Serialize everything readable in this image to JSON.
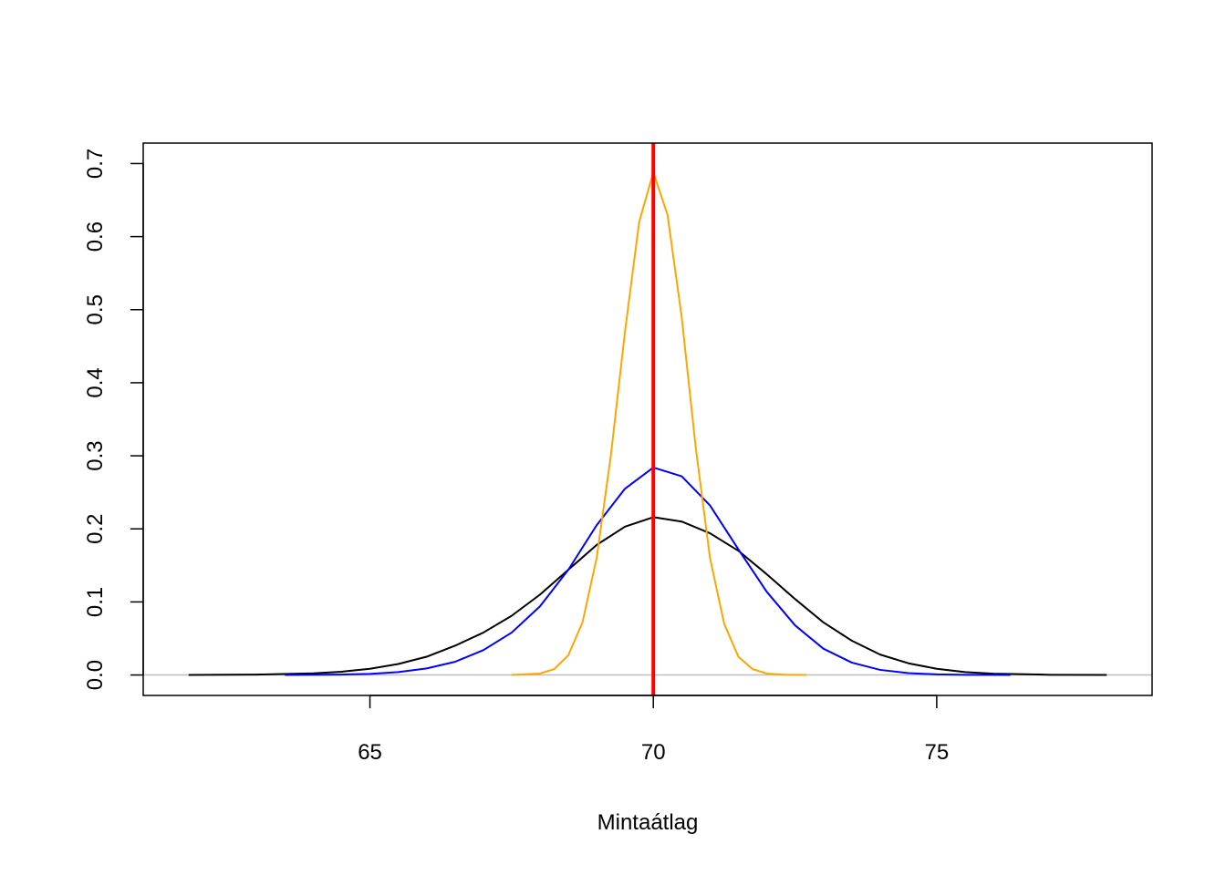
{
  "chart_data": {
    "type": "line",
    "title": "",
    "xlabel": "Mintaátlag",
    "ylabel": "",
    "xlim": [
      61.0,
      78.8
    ],
    "ylim": [
      -0.028,
      0.728
    ],
    "x_ticks": [
      65,
      70,
      75
    ],
    "x_tick_labels": [
      "65",
      "70",
      "75"
    ],
    "y_ticks": [
      0.0,
      0.1,
      0.2,
      0.3,
      0.4,
      0.5,
      0.6,
      0.7
    ],
    "y_tick_labels": [
      "0.0",
      "0.1",
      "0.2",
      "0.3",
      "0.4",
      "0.5",
      "0.6",
      "0.7"
    ],
    "grid": false,
    "legend": "none",
    "baseline": {
      "y": 0,
      "color": "#bebebe"
    },
    "vline": {
      "x": 70,
      "color": "#ff0000"
    },
    "series": [
      {
        "color": "#000000",
        "x": [
          61.8,
          63.0,
          64.0,
          64.5,
          65.0,
          65.5,
          66.0,
          66.5,
          67.0,
          67.5,
          68.0,
          68.5,
          69.0,
          69.5,
          70.0,
          70.5,
          71.0,
          71.5,
          72.0,
          72.5,
          73.0,
          73.5,
          74.0,
          74.5,
          75.0,
          75.5,
          76.0,
          77.0,
          78.0
        ],
        "y": [
          0.0,
          0.0005,
          0.0023,
          0.0045,
          0.0085,
          0.015,
          0.025,
          0.04,
          0.058,
          0.081,
          0.11,
          0.144,
          0.178,
          0.203,
          0.216,
          0.21,
          0.194,
          0.17,
          0.138,
          0.104,
          0.072,
          0.047,
          0.028,
          0.016,
          0.0085,
          0.004,
          0.0018,
          0.0003,
          0.0
        ]
      },
      {
        "color": "#0000ff",
        "x": [
          63.5,
          64.5,
          65.0,
          65.5,
          66.0,
          66.5,
          67.0,
          67.5,
          68.0,
          68.5,
          69.0,
          69.5,
          70.0,
          70.5,
          71.0,
          71.5,
          72.0,
          72.5,
          73.0,
          73.5,
          74.0,
          74.5,
          75.0,
          75.5,
          76.3
        ],
        "y": [
          0.0,
          0.0006,
          0.0015,
          0.004,
          0.009,
          0.018,
          0.034,
          0.058,
          0.094,
          0.144,
          0.205,
          0.255,
          0.284,
          0.272,
          0.232,
          0.172,
          0.114,
          0.068,
          0.036,
          0.017,
          0.007,
          0.0025,
          0.0008,
          0.0002,
          0.0
        ]
      },
      {
        "color": "#ffa500",
        "x": [
          67.5,
          68.0,
          68.25,
          68.5,
          68.75,
          69.0,
          69.25,
          69.5,
          69.75,
          70.0,
          70.25,
          70.5,
          70.75,
          71.0,
          71.25,
          71.5,
          71.75,
          72.0,
          72.3,
          72.7
        ],
        "y": [
          0.0,
          0.002,
          0.008,
          0.027,
          0.072,
          0.16,
          0.3,
          0.47,
          0.62,
          0.688,
          0.63,
          0.49,
          0.31,
          0.16,
          0.07,
          0.025,
          0.008,
          0.002,
          0.0004,
          0.0
        ]
      }
    ]
  }
}
